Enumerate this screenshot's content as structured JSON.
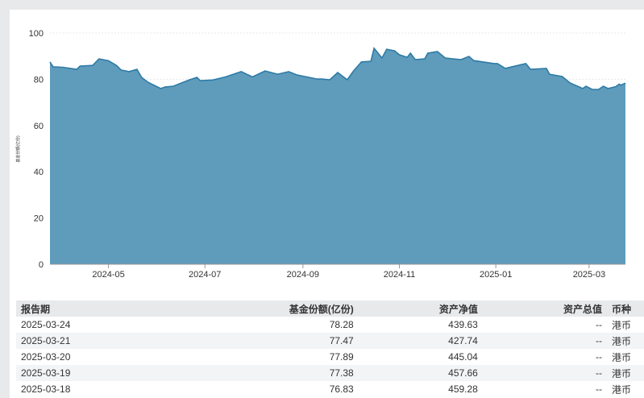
{
  "chart_data": {
    "type": "area",
    "ylabel": "基金份额(亿份)",
    "ylim": [
      0,
      100
    ],
    "yticks": [
      0,
      20,
      40,
      60,
      80,
      100
    ],
    "xlim": [
      "2024-03-25",
      "2025-03-24"
    ],
    "xticks": [
      "2024-05",
      "2024-07",
      "2024-09",
      "2024-11",
      "2025-01",
      "2025-03"
    ],
    "grid": true,
    "color": "#2e7aa6",
    "fill": "#5f9cbb",
    "points": [
      [
        "2024-03-25",
        87.5
      ],
      [
        "2024-03-27",
        85.4
      ],
      [
        "2024-04-02",
        85.2
      ],
      [
        "2024-04-11",
        84.3
      ],
      [
        "2024-04-13",
        85.7
      ],
      [
        "2024-04-21",
        86.0
      ],
      [
        "2024-04-25",
        88.8
      ],
      [
        "2024-05-01",
        88.0
      ],
      [
        "2024-05-06",
        86.0
      ],
      [
        "2024-05-09",
        84.0
      ],
      [
        "2024-05-14",
        83.3
      ],
      [
        "2024-05-19",
        84.3
      ],
      [
        "2024-05-22",
        80.8
      ],
      [
        "2024-05-26",
        78.7
      ],
      [
        "2024-06-03",
        76.0
      ],
      [
        "2024-06-06",
        76.7
      ],
      [
        "2024-06-11",
        77.0
      ],
      [
        "2024-06-21",
        79.7
      ],
      [
        "2024-06-26",
        80.8
      ],
      [
        "2024-06-28",
        79.4
      ],
      [
        "2024-07-06",
        79.7
      ],
      [
        "2024-07-14",
        81.0
      ],
      [
        "2024-07-24",
        83.3
      ],
      [
        "2024-07-31",
        81.0
      ],
      [
        "2024-08-08",
        83.6
      ],
      [
        "2024-08-16",
        82.2
      ],
      [
        "2024-08-23",
        83.3
      ],
      [
        "2024-08-28",
        81.9
      ],
      [
        "2024-09-10",
        80.1
      ],
      [
        "2024-09-13",
        80.1
      ],
      [
        "2024-09-18",
        79.8
      ],
      [
        "2024-09-23",
        82.9
      ],
      [
        "2024-09-29",
        79.8
      ],
      [
        "2024-10-03",
        83.6
      ],
      [
        "2024-10-08",
        87.5
      ],
      [
        "2024-10-14",
        87.8
      ],
      [
        "2024-10-16",
        93.4
      ],
      [
        "2024-10-21",
        89.2
      ],
      [
        "2024-10-24",
        93.0
      ],
      [
        "2024-10-29",
        92.3
      ],
      [
        "2024-11-01",
        90.6
      ],
      [
        "2024-11-06",
        89.5
      ],
      [
        "2024-11-08",
        91.3
      ],
      [
        "2024-11-11",
        88.5
      ],
      [
        "2024-11-17",
        88.8
      ],
      [
        "2024-11-19",
        91.3
      ],
      [
        "2024-11-25",
        92.0
      ],
      [
        "2024-11-30",
        89.2
      ],
      [
        "2024-12-10",
        88.5
      ],
      [
        "2024-12-15",
        89.9
      ],
      [
        "2024-12-18",
        88.1
      ],
      [
        "2024-12-31",
        86.8
      ],
      [
        "2025-01-02",
        86.8
      ],
      [
        "2025-01-07",
        84.7
      ],
      [
        "2025-01-15",
        86.0
      ],
      [
        "2025-01-20",
        86.8
      ],
      [
        "2025-01-23",
        84.3
      ],
      [
        "2025-02-02",
        84.7
      ],
      [
        "2025-02-04",
        82.2
      ],
      [
        "2025-02-12",
        81.2
      ],
      [
        "2025-02-17",
        78.4
      ],
      [
        "2025-02-25",
        76.0
      ],
      [
        "2025-02-27",
        77.0
      ],
      [
        "2025-03-03",
        75.6
      ],
      [
        "2025-03-07",
        75.6
      ],
      [
        "2025-03-10",
        77.0
      ],
      [
        "2025-03-13",
        76.0
      ],
      [
        "2025-03-18",
        76.83
      ],
      [
        "2025-03-19",
        77.38
      ],
      [
        "2025-03-20",
        77.89
      ],
      [
        "2025-03-21",
        77.47
      ],
      [
        "2025-03-24",
        78.28
      ]
    ]
  },
  "table": {
    "headers": [
      "报告期",
      "基金份额(亿份)",
      "资产净值",
      "资产总值",
      "币种"
    ],
    "rows": [
      [
        "2025-03-24",
        "78.28",
        "439.63",
        "--",
        "港币"
      ],
      [
        "2025-03-21",
        "77.47",
        "427.74",
        "--",
        "港币"
      ],
      [
        "2025-03-20",
        "77.89",
        "445.04",
        "--",
        "港币"
      ],
      [
        "2025-03-19",
        "77.38",
        "457.66",
        "--",
        "港币"
      ],
      [
        "2025-03-18",
        "76.83",
        "459.28",
        "--",
        "港币"
      ]
    ]
  }
}
